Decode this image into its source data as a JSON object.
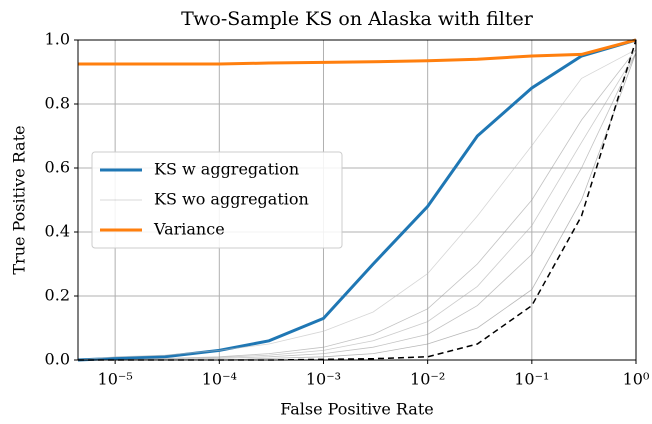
{
  "chart_data": {
    "type": "line",
    "title": "Two-Sample KS on Alaska with filter",
    "x_label": "False Positive Rate",
    "y_label": "True Positive Rate",
    "x": [
      4.4e-06,
      1e-05,
      3e-05,
      0.0001,
      0.0003,
      0.001,
      0.003,
      0.01,
      0.03,
      0.1,
      0.3,
      1
    ],
    "series": [
      {
        "name": "KS w aggregation",
        "color": "#1f77b4",
        "width": 3,
        "values": [
          0,
          0.005,
          0.01,
          0.03,
          0.06,
          0.13,
          0.3,
          0.48,
          0.7,
          0.85,
          0.95,
          1.0
        ]
      },
      {
        "name": "KS wo aggregation",
        "color": "#999999",
        "width": 0.8,
        "values": [
          0,
          0,
          0.005,
          0.01,
          0.02,
          0.04,
          0.08,
          0.16,
          0.3,
          0.5,
          0.75,
          0.97
        ]
      },
      {
        "color": "#999999",
        "width": 0.8,
        "values": [
          0,
          0,
          0,
          0.005,
          0.01,
          0.02,
          0.04,
          0.08,
          0.17,
          0.33,
          0.6,
          0.96
        ]
      },
      {
        "color": "#bbbbbb",
        "width": 0.8,
        "values": [
          0,
          0.01,
          0.015,
          0.03,
          0.05,
          0.09,
          0.15,
          0.27,
          0.45,
          0.67,
          0.88,
          0.97
        ]
      },
      {
        "color": "#888888",
        "width": 0.8,
        "values": [
          0,
          0,
          0,
          0,
          0.005,
          0.01,
          0.02,
          0.05,
          0.1,
          0.22,
          0.5,
          0.96
        ]
      },
      {
        "color": "#aaaaaa",
        "width": 0.8,
        "values": [
          0,
          0,
          0.003,
          0.008,
          0.015,
          0.03,
          0.06,
          0.12,
          0.23,
          0.42,
          0.68,
          0.96
        ]
      },
      {
        "name": "Variance",
        "color": "#ff7f0e",
        "width": 3,
        "values": [
          0.925,
          0.925,
          0.925,
          0.925,
          0.928,
          0.93,
          0.932,
          0.935,
          0.94,
          0.95,
          0.955,
          1.0
        ]
      },
      {
        "color": "#000000",
        "width": 1.5,
        "dash": "6,4",
        "values": [
          0,
          0,
          0,
          0,
          0,
          0.002,
          0.004,
          0.01,
          0.05,
          0.17,
          0.45,
          1.0
        ]
      }
    ],
    "xscale": "log",
    "xlim": [
      4.4e-06,
      1
    ],
    "xticks": [
      {
        "value": 1e-05,
        "label": "10⁻⁵"
      },
      {
        "value": 0.0001,
        "label": "10⁻⁴"
      },
      {
        "value": 0.001,
        "label": "10⁻³"
      },
      {
        "value": 0.01,
        "label": "10⁻²"
      },
      {
        "value": 0.1,
        "label": "10⁻¹"
      },
      {
        "value": 1,
        "label": "10⁰"
      }
    ],
    "ylim": [
      0,
      1
    ],
    "yticks": [
      {
        "value": 0,
        "label": "0.0"
      },
      {
        "value": 0.2,
        "label": "0.2"
      },
      {
        "value": 0.4,
        "label": "0.4"
      },
      {
        "value": 0.6,
        "label": "0.6"
      },
      {
        "value": 0.8,
        "label": "0.8"
      },
      {
        "value": 1,
        "label": "1.0"
      }
    ],
    "grid": true,
    "legend": "center left"
  }
}
